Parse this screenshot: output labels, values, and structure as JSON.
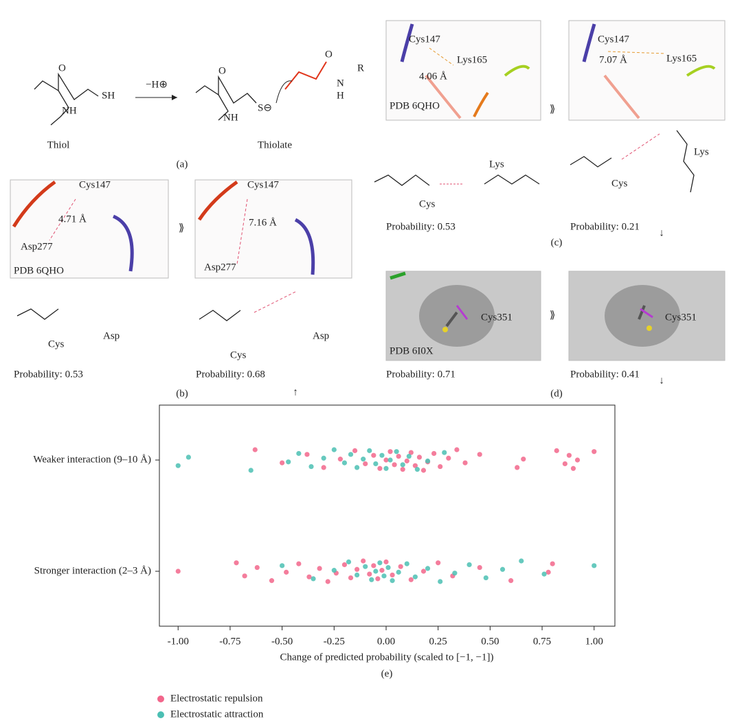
{
  "panels": {
    "a": {
      "label": "(a)",
      "reagent": "−H⊕",
      "thiol": "Thiol",
      "thiolate": "Thiolate",
      "sh": "SH",
      "nh": "NH",
      "o": "O",
      "s": "S⊖",
      "n": "N",
      "h": "H",
      "r": "R"
    },
    "b": {
      "label": "(b)",
      "img1": {
        "res1": "Cys147",
        "dist": "4.71 Å",
        "res2": "Asp277",
        "pdb": "PDB 6QHO"
      },
      "img2": {
        "res1": "Cys147",
        "dist": "7.16 Å",
        "res2": "Asp277"
      },
      "cys": "Cys",
      "asp": "Asp",
      "prob1": "Probability: 0.53",
      "prob2": "Probability: 0.68"
    },
    "c": {
      "label": "(c)",
      "img1": {
        "res1": "Cys147",
        "res2": "Lys165",
        "dist": "4.06 Å",
        "pdb": "PDB 6QHO"
      },
      "img2": {
        "res1": "Cys147",
        "dist": "7.07 Å",
        "res2": "Lys165"
      },
      "lys": "Lys",
      "cys": "Cys",
      "prob1": "Probability: 0.53",
      "prob2": "Probability: 0.21"
    },
    "d": {
      "label": "(d)",
      "img1": {
        "res": "Cys351",
        "pdb": "PDB 6I0X"
      },
      "img2": {
        "res": "Cys351"
      },
      "prob1": "Probability: 0.71",
      "prob2": "Probability: 0.41"
    }
  },
  "chart_data": {
    "type": "strip",
    "panel_label": "(e)",
    "xlabel": "Change of predicted probability (scaled to [−1, −1])",
    "categories": [
      "Weaker interaction (9–10 Å)",
      "Stronger interaction (2–3 Å)"
    ],
    "xlim": [
      -1.09,
      1.1
    ],
    "xticks": [
      {
        "value": -1,
        "label": "-1.00"
      },
      {
        "value": -0.75,
        "label": "-0.75"
      },
      {
        "value": -0.5,
        "label": "-0.50"
      },
      {
        "value": -0.25,
        "label": "-0.25"
      },
      {
        "value": 0,
        "label": "0.00"
      },
      {
        "value": 0.25,
        "label": "0.25"
      },
      {
        "value": 0.5,
        "label": "0.50"
      },
      {
        "value": 0.75,
        "label": "0.75"
      },
      {
        "value": 1,
        "label": "1.00"
      }
    ],
    "series": [
      {
        "name": "Electrostatic repulsion",
        "color": "#f2668b",
        "values": [
          [
            -0.63,
            -0.5,
            -0.38,
            -0.3,
            -0.22,
            -0.15,
            -0.1,
            -0.06,
            -0.03,
            0.0,
            0.02,
            0.04,
            0.06,
            0.08,
            0.1,
            0.12,
            0.14,
            0.16,
            0.18,
            0.2,
            0.23,
            0.26,
            0.3,
            0.34,
            0.38,
            0.45,
            0.63,
            0.66,
            0.82,
            0.86,
            0.88,
            0.9,
            0.92,
            1.0
          ],
          [
            -1.0,
            -0.72,
            -0.68,
            -0.62,
            -0.55,
            -0.48,
            -0.42,
            -0.37,
            -0.32,
            -0.28,
            -0.24,
            -0.2,
            -0.17,
            -0.14,
            -0.11,
            -0.08,
            -0.06,
            -0.04,
            -0.02,
            0.0,
            0.03,
            0.07,
            0.12,
            0.18,
            0.25,
            0.32,
            0.45,
            0.6,
            0.78,
            0.8
          ]
        ]
      },
      {
        "name": "Electrostatic attraction",
        "color": "#4bbfb3",
        "values": [
          [
            -1.0,
            -0.95,
            -0.65,
            -0.47,
            -0.42,
            -0.36,
            -0.3,
            -0.25,
            -0.2,
            -0.17,
            -0.14,
            -0.11,
            -0.08,
            -0.05,
            -0.02,
            0.0,
            0.02,
            0.05,
            0.08,
            0.11,
            0.15,
            0.2,
            0.28
          ],
          [
            -0.5,
            -0.35,
            -0.25,
            -0.18,
            -0.14,
            -0.1,
            -0.07,
            -0.05,
            -0.03,
            -0.01,
            0.01,
            0.03,
            0.06,
            0.1,
            0.14,
            0.2,
            0.26,
            0.33,
            0.4,
            0.48,
            0.56,
            0.65,
            0.76,
            1.0
          ]
        ]
      }
    ]
  }
}
